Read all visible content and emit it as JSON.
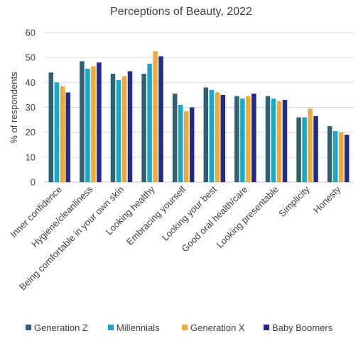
{
  "chart_data": {
    "type": "bar",
    "title": "Perceptions of Beauty, 2022",
    "xlabel": "",
    "ylabel": "% of respondents",
    "ylim": [
      0,
      60
    ],
    "yticks": [
      0,
      10,
      20,
      30,
      40,
      50,
      60
    ],
    "grid": true,
    "legend_position": "bottom",
    "categories": [
      "Inner confidence",
      "Hygiene/cleanliness",
      "Being comfortable in your own skin",
      "Looking healthy",
      "Embracing yourself",
      "Looking your best",
      "Good oral health/care",
      "Looking presentable",
      "Simplicity",
      "Honesty"
    ],
    "series": [
      {
        "name": "Generation Z",
        "color": "#2e6171",
        "values": [
          44,
          48.5,
          43.5,
          43.5,
          35.5,
          38,
          34.5,
          34.5,
          26,
          22.5
        ]
      },
      {
        "name": "Millennials",
        "color": "#18a9c9",
        "values": [
          40,
          45.5,
          41,
          47.5,
          31,
          37,
          33.5,
          33.5,
          26,
          20.5
        ]
      },
      {
        "name": "Generation X",
        "color": "#f5a83a",
        "values": [
          38.5,
          46.5,
          42.5,
          52.5,
          28.5,
          36,
          34.5,
          32.5,
          29.5,
          20
        ]
      },
      {
        "name": "Baby Boomers",
        "color": "#222a8a",
        "values": [
          36,
          48,
          44.5,
          50.5,
          30,
          35,
          35.5,
          33,
          26.5,
          19
        ]
      }
    ]
  }
}
